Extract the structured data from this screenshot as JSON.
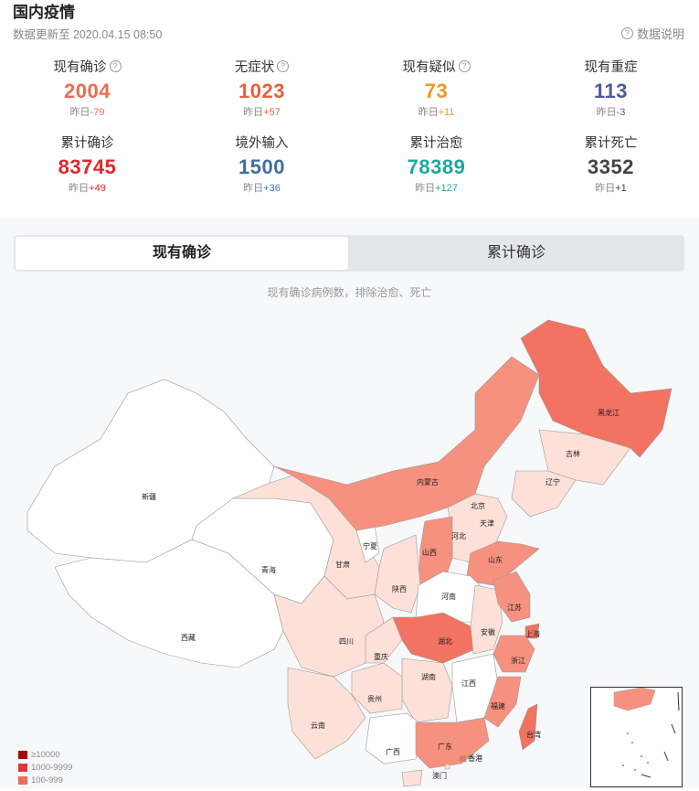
{
  "header": {
    "title": "国内疫情",
    "update_time": "数据更新至 2020.04.15 08:50",
    "explain_label": "数据说明"
  },
  "stats": [
    {
      "label": "现有确诊",
      "value": "2004",
      "delta_prefix": "昨日",
      "delta": "-79",
      "color": "#f06a50",
      "help": true
    },
    {
      "label": "无症状",
      "value": "1023",
      "delta_prefix": "昨日",
      "delta": "+57",
      "color": "#eb5e3a",
      "help": true
    },
    {
      "label": "现有疑似",
      "value": "73",
      "delta_prefix": "昨日",
      "delta": "+11",
      "color": "#f0961e",
      "help": true
    },
    {
      "label": "现有重症",
      "value": "113",
      "delta_prefix": "昨日",
      "delta": "-3",
      "color": "#4f5a9b",
      "help": false
    },
    {
      "label": "累计确诊",
      "value": "83745",
      "delta_prefix": "昨日",
      "delta": "+49",
      "color": "#e02828",
      "help": false
    },
    {
      "label": "境外输入",
      "value": "1500",
      "delta_prefix": "昨日",
      "delta": "+36",
      "color": "#3f6ea3",
      "help": false
    },
    {
      "label": "累计治愈",
      "value": "78389",
      "delta_prefix": "昨日",
      "delta": "+127",
      "color": "#1aa9a0",
      "help": false
    },
    {
      "label": "累计死亡",
      "value": "3352",
      "delta_prefix": "昨日",
      "delta": "+1",
      "color": "#444444",
      "help": false
    }
  ],
  "tabs": {
    "active": "现有确诊",
    "inactive": "累计确诊"
  },
  "map_note": "现有确诊病例数，排除治愈、死亡",
  "map_labels": [
    "新疆",
    "西藏",
    "青海",
    "甘肃",
    "宁夏",
    "内蒙古",
    "黑龙江",
    "吉林",
    "辽宁",
    "北京",
    "天津",
    "河北",
    "山西",
    "山东",
    "陕西",
    "河南",
    "四川",
    "重庆",
    "湖北",
    "安徽",
    "江苏",
    "上海",
    "浙江",
    "湖南",
    "江西",
    "贵州",
    "云南",
    "广西",
    "广东",
    "福建",
    "台湾",
    "香港",
    "澳门"
  ],
  "legend": [
    {
      "label": "≥10000",
      "color": "#a10a0a"
    },
    {
      "label": "1000-9999",
      "color": "#d83a3a"
    },
    {
      "label": "100-999",
      "color": "#f06a5a"
    }
  ],
  "colors": {
    "level_high": "#f27361",
    "level_mid": "#f7917f",
    "level_low": "#fde1d8",
    "level_none": "#ffffff",
    "border": "#999999"
  }
}
